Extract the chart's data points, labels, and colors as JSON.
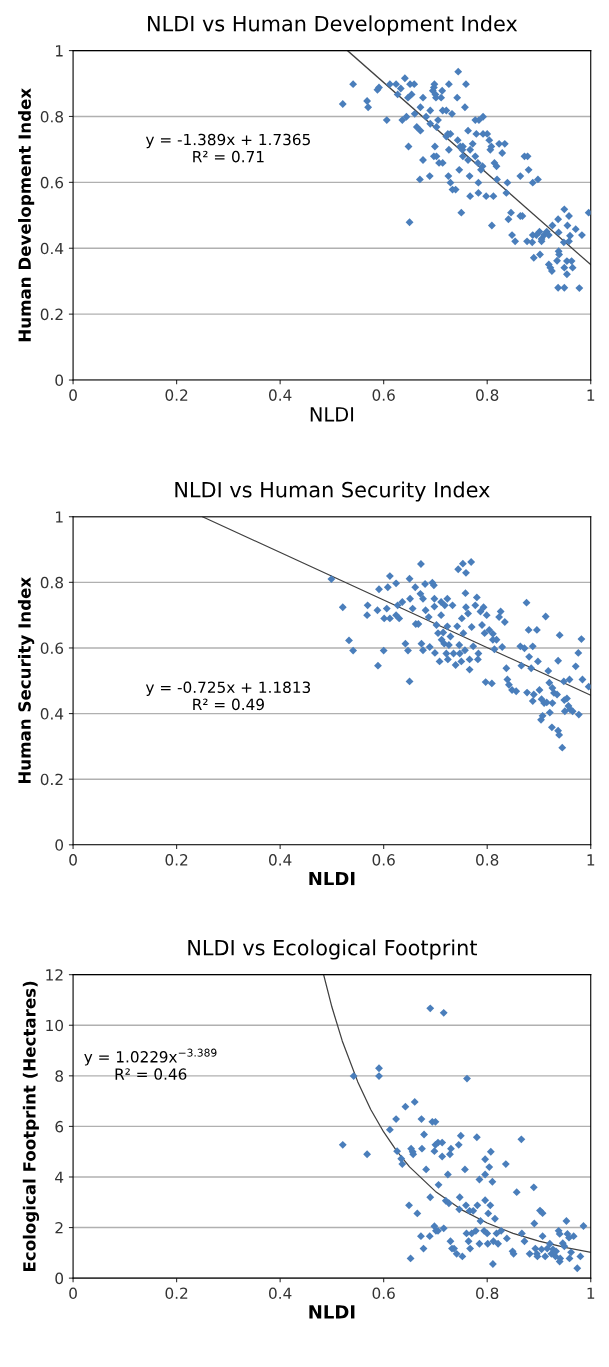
{
  "chart_data": [
    {
      "type": "scatter",
      "title": "NLDI vs Human Development Index",
      "xlabel": "NLDI",
      "ylabel": "Human Development Index",
      "xlim": [
        0,
        1
      ],
      "ylim": [
        0,
        1
      ],
      "xticks": [
        0,
        0.2,
        0.4,
        0.6,
        0.8,
        1
      ],
      "yticks": [
        0,
        0.2,
        0.4,
        0.6,
        0.8,
        1
      ],
      "grid": "y",
      "marker": "diamond",
      "annotations": [
        "y = -1.389x + 1.7365\nR² = 0.71"
      ],
      "series": [
        {
          "color": "#4a7ebb",
          "x": [
            0.521,
            0.541,
            0.568,
            0.57,
            0.588,
            0.591,
            0.606,
            0.612,
            0.624,
            0.627,
            0.633,
            0.641,
            0.636,
            0.644,
            0.648,
            0.65,
            0.651,
            0.659,
            0.647,
            0.654,
            0.66,
            0.664,
            0.671,
            0.671,
            0.676,
            0.676,
            0.67,
            0.682,
            0.689,
            0.69,
            0.69,
            0.695,
            0.697,
            0.698,
            0.7,
            0.701,
            0.699,
            0.697,
            0.702,
            0.705,
            0.702,
            0.707,
            0.713,
            0.714,
            0.711,
            0.714,
            0.721,
            0.726,
            0.732,
            0.721,
            0.724,
            0.729,
            0.726,
            0.725,
            0.729,
            0.733,
            0.739,
            0.744,
            0.742,
            0.743,
            0.746,
            0.748,
            0.75,
            0.753,
            0.752,
            0.757,
            0.759,
            0.753,
            0.763,
            0.763,
            0.767,
            0.766,
            0.767,
            0.772,
            0.777,
            0.777,
            0.779,
            0.783,
            0.783,
            0.784,
            0.782,
            0.792,
            0.792,
            0.788,
            0.791,
            0.798,
            0.8,
            0.804,
            0.806,
            0.808,
            0.812,
            0.809,
            0.814,
            0.818,
            0.819,
            0.823,
            0.829,
            0.834,
            0.839,
            0.837,
            0.841,
            0.846,
            0.848,
            0.854,
            0.864,
            0.868,
            0.864,
            0.872,
            0.878,
            0.88,
            0.877,
            0.888,
            0.898,
            0.888,
            0.89,
            0.887,
            0.895,
            0.901,
            0.902,
            0.905,
            0.905,
            0.91,
            0.915,
            0.919,
            0.919,
            0.922,
            0.925,
            0.926,
            0.935,
            0.938,
            0.939,
            0.937,
            0.938,
            0.937,
            0.949,
            0.949,
            0.948,
            0.949,
            0.954,
            0.958,
            0.958,
            0.954,
            0.96,
            0.963,
            0.965,
            0.971,
            0.978,
            0.983,
            0.996,
            0.955
          ],
          "values": [
            0.838,
            0.898,
            0.847,
            0.828,
            0.881,
            0.888,
            0.789,
            0.898,
            0.898,
            0.867,
            0.885,
            0.916,
            0.789,
            0.799,
            0.709,
            0.479,
            0.898,
            0.898,
            0.857,
            0.867,
            0.808,
            0.768,
            0.757,
            0.828,
            0.857,
            0.668,
            0.609,
            0.799,
            0.619,
            0.818,
            0.778,
            0.878,
            0.888,
            0.898,
            0.867,
            0.857,
            0.709,
            0.679,
            0.679,
            0.789,
            0.768,
            0.659,
            0.878,
            0.659,
            0.857,
            0.818,
            0.818,
            0.898,
            0.808,
            0.739,
            0.747,
            0.747,
            0.699,
            0.619,
            0.599,
            0.578,
            0.578,
            0.936,
            0.857,
            0.728,
            0.638,
            0.709,
            0.508,
            0.709,
            0.699,
            0.828,
            0.898,
            0.679,
            0.757,
            0.668,
            0.699,
            0.619,
            0.558,
            0.717,
            0.679,
            0.789,
            0.747,
            0.599,
            0.568,
            0.789,
            0.659,
            0.799,
            0.747,
            0.638,
            0.649,
            0.558,
            0.747,
            0.728,
            0.699,
            0.709,
            0.558,
            0.469,
            0.659,
            0.649,
            0.609,
            0.717,
            0.689,
            0.717,
            0.599,
            0.568,
            0.488,
            0.508,
            0.44,
            0.421,
            0.498,
            0.498,
            0.619,
            0.679,
            0.679,
            0.638,
            0.421,
            0.599,
            0.609,
            0.44,
            0.371,
            0.418,
            0.44,
            0.45,
            0.381,
            0.428,
            0.421,
            0.44,
            0.45,
            0.44,
            0.351,
            0.341,
            0.331,
            0.469,
            0.362,
            0.391,
            0.381,
            0.488,
            0.448,
            0.28,
            0.518,
            0.28,
            0.418,
            0.341,
            0.321,
            0.498,
            0.421,
            0.361,
            0.438,
            0.361,
            0.341,
            0.458,
            0.279,
            0.44,
            0.508,
            0.469
          ]
        },
        {
          "type": "line",
          "color": "#404040",
          "marker": "none",
          "x": [
            0.53,
            1
          ],
          "values": [
            1.0,
            0.35
          ]
        }
      ]
    },
    {
      "type": "scatter",
      "title": "NLDI vs Human Security Index",
      "xlabel": "NLDI",
      "ylabel": "Human Security Index",
      "xlim": [
        0,
        1
      ],
      "ylim": [
        0,
        1
      ],
      "xticks": [
        0,
        0.2,
        0.4,
        0.6,
        0.8,
        1
      ],
      "yticks": [
        0,
        0.2,
        0.4,
        0.6,
        0.8,
        1
      ],
      "grid": "y",
      "marker": "diamond",
      "annotations": [
        "y = -0.725x + 1.1813\nR² = 0.49"
      ],
      "series": [
        {
          "color": "#4a7ebb",
          "x": [
            0.499,
            0.521,
            0.533,
            0.541,
            0.568,
            0.569,
            0.588,
            0.589,
            0.591,
            0.601,
            0.6,
            0.606,
            0.608,
            0.612,
            0.612,
            0.624,
            0.624,
            0.627,
            0.63,
            0.636,
            0.642,
            0.647,
            0.65,
            0.65,
            0.651,
            0.656,
            0.661,
            0.662,
            0.667,
            0.672,
            0.671,
            0.673,
            0.676,
            0.68,
            0.676,
            0.681,
            0.687,
            0.689,
            0.694,
            0.697,
            0.698,
            0.698,
            0.699,
            0.702,
            0.705,
            0.708,
            0.711,
            0.711,
            0.712,
            0.715,
            0.717,
            0.718,
            0.723,
            0.721,
            0.723,
            0.724,
            0.726,
            0.729,
            0.733,
            0.735,
            0.739,
            0.742,
            0.744,
            0.746,
            0.747,
            0.75,
            0.751,
            0.753,
            0.754,
            0.757,
            0.758,
            0.759,
            0.759,
            0.763,
            0.766,
            0.766,
            0.769,
            0.77,
            0.773,
            0.777,
            0.78,
            0.782,
            0.783,
            0.787,
            0.79,
            0.793,
            0.795,
            0.797,
            0.799,
            0.804,
            0.809,
            0.811,
            0.811,
            0.814,
            0.818,
            0.823,
            0.826,
            0.829,
            0.834,
            0.837,
            0.839,
            0.842,
            0.848,
            0.856,
            0.864,
            0.866,
            0.872,
            0.876,
            0.877,
            0.88,
            0.881,
            0.885,
            0.888,
            0.89,
            0.888,
            0.896,
            0.898,
            0.901,
            0.904,
            0.905,
            0.907,
            0.91,
            0.913,
            0.915,
            0.918,
            0.92,
            0.921,
            0.926,
            0.926,
            0.925,
            0.929,
            0.935,
            0.937,
            0.937,
            0.939,
            0.94,
            0.945,
            0.948,
            0.949,
            0.95,
            0.954,
            0.957,
            0.959,
            0.96,
            0.965,
            0.971,
            0.976,
            0.977,
            0.982,
            0.984,
            0.996
          ],
          "values": [
            0.81,
            0.724,
            0.623,
            0.592,
            0.7,
            0.73,
            0.715,
            0.546,
            0.779,
            0.69,
            0.592,
            0.72,
            0.785,
            0.819,
            0.69,
            0.797,
            0.7,
            0.73,
            0.69,
            0.74,
            0.613,
            0.592,
            0.498,
            0.811,
            0.75,
            0.72,
            0.785,
            0.673,
            0.673,
            0.856,
            0.765,
            0.613,
            0.593,
            0.795,
            0.75,
            0.715,
            0.694,
            0.603,
            0.799,
            0.791,
            0.75,
            0.726,
            0.585,
            0.67,
            0.645,
            0.559,
            0.74,
            0.7,
            0.625,
            0.647,
            0.613,
            0.73,
            0.666,
            0.583,
            0.75,
            0.565,
            0.609,
            0.635,
            0.73,
            0.583,
            0.548,
            0.666,
            0.84,
            0.609,
            0.583,
            0.559,
            0.69,
            0.857,
            0.645,
            0.593,
            0.767,
            0.829,
            0.724,
            0.705,
            0.534,
            0.565,
            0.862,
            0.664,
            0.605,
            0.73,
            0.754,
            0.565,
            0.583,
            0.711,
            0.67,
            0.724,
            0.645,
            0.496,
            0.7,
            0.655,
            0.492,
            0.643,
            0.625,
            0.596,
            0.625,
            0.694,
            0.711,
            0.603,
            0.679,
            0.538,
            0.504,
            0.488,
            0.472,
            0.468,
            0.605,
            0.546,
            0.599,
            0.738,
            0.464,
            0.655,
            0.573,
            0.538,
            0.605,
            0.458,
            0.438,
            0.655,
            0.559,
            0.472,
            0.381,
            0.444,
            0.393,
            0.432,
            0.696,
            0.434,
            0.53,
            0.494,
            0.403,
            0.478,
            0.432,
            0.358,
            0.463,
            0.458,
            0.561,
            0.348,
            0.335,
            0.639,
            0.296,
            0.498,
            0.441,
            0.407,
            0.446,
            0.423,
            0.504,
            0.413,
            0.407,
            0.544,
            0.585,
            0.397,
            0.627,
            0.504,
            0.482
          ]
        },
        {
          "type": "line",
          "color": "#404040",
          "marker": "none",
          "x": [
            0.25,
            1
          ],
          "values": [
            1.0,
            0.456
          ]
        }
      ]
    },
    {
      "type": "scatter",
      "title": "NLDI vs Ecological Footprint",
      "xlabel": "NLDI",
      "ylabel": "Ecological Footprint (Hectares)",
      "xlim": [
        0,
        1
      ],
      "ylim": [
        0,
        12
      ],
      "xticks": [
        0,
        0.2,
        0.4,
        0.6,
        0.8,
        1
      ],
      "yticks": [
        0,
        2,
        4,
        6,
        8,
        10,
        12
      ],
      "grid": "y",
      "marker": "diamond",
      "annotations": [
        "y = 1.0229x$^{−3.389}$\nR² = 0.46"
      ],
      "series": [
        {
          "color": "#4a7ebb",
          "x": [
            0.521,
            0.542,
            0.568,
            0.591,
            0.591,
            0.612,
            0.624,
            0.626,
            0.634,
            0.636,
            0.642,
            0.649,
            0.652,
            0.653,
            0.656,
            0.657,
            0.66,
            0.665,
            0.672,
            0.673,
            0.674,
            0.677,
            0.678,
            0.682,
            0.689,
            0.69,
            0.69,
            0.694,
            0.698,
            0.7,
            0.698,
            0.7,
            0.701,
            0.705,
            0.706,
            0.705,
            0.713,
            0.713,
            0.716,
            0.716,
            0.72,
            0.724,
            0.726,
            0.728,
            0.729,
            0.73,
            0.732,
            0.736,
            0.741,
            0.745,
            0.746,
            0.747,
            0.749,
            0.752,
            0.757,
            0.759,
            0.761,
            0.76,
            0.764,
            0.766,
            0.767,
            0.77,
            0.773,
            0.778,
            0.78,
            0.781,
            0.785,
            0.785,
            0.787,
            0.794,
            0.796,
            0.796,
            0.796,
            0.8,
            0.801,
            0.802,
            0.804,
            0.806,
            0.807,
            0.81,
            0.811,
            0.812,
            0.815,
            0.818,
            0.821,
            0.827,
            0.836,
            0.838,
            0.849,
            0.851,
            0.857,
            0.866,
            0.867,
            0.872,
            0.882,
            0.89,
            0.891,
            0.893,
            0.896,
            0.897,
            0.902,
            0.905,
            0.907,
            0.907,
            0.912,
            0.916,
            0.921,
            0.924,
            0.927,
            0.932,
            0.933,
            0.938,
            0.94,
            0.94,
            0.941,
            0.946,
            0.949,
            0.953,
            0.955,
            0.958,
            0.959,
            0.962,
            0.967,
            0.974,
            0.98,
            0.986
          ],
          "values": [
            5.27,
            7.99,
            4.9,
            8.3,
            7.99,
            5.87,
            6.29,
            5.02,
            4.72,
            4.51,
            6.78,
            2.88,
            0.78,
            5.12,
            5.0,
            4.9,
            6.97,
            2.56,
            1.66,
            6.29,
            5.12,
            1.17,
            5.68,
            4.3,
            1.66,
            3.2,
            10.67,
            6.18,
            2.05,
            6.18,
            5.02,
            5.27,
            1.87,
            5.36,
            3.69,
            1.87,
            5.36,
            4.81,
            1.97,
            10.49,
            3.06,
            4.1,
            2.96,
            4.9,
            1.46,
            5.12,
            1.17,
            1.17,
            0.96,
            5.27,
            2.72,
            3.2,
            5.63,
            0.86,
            4.3,
            2.88,
            7.89,
            1.77,
            1.46,
            2.66,
            1.17,
            1.77,
            2.66,
            1.87,
            5.57,
            2.88,
            3.9,
            1.36,
            2.26,
            1.87,
            3.08,
            4.7,
            4.1,
            1.77,
            1.36,
            2.56,
            4.39,
            2.88,
            5.0,
            3.81,
            0.56,
            1.46,
            2.35,
            1.77,
            1.36,
            1.87,
            4.51,
            1.57,
            1.06,
            0.96,
            3.4,
            5.49,
            1.77,
            1.46,
            0.96,
            3.59,
            2.16,
            1.17,
            0.96,
            0.86,
            2.67,
            1.14,
            2.57,
            1.66,
            0.86,
            1.17,
            1.36,
            0.96,
            1.14,
            0.86,
            1.06,
            1.87,
            1.75,
            0.66,
            0.78,
            1.38,
            1.26,
            2.26,
            1.75,
            1.6,
            0.78,
            1.02,
            1.66,
            0.39,
            0.86,
            2.06
          ]
        },
        {
          "type": "line",
          "color": "#404040",
          "marker": "none",
          "x": [
            0.484,
            0.5,
            0.52,
            0.55,
            0.575,
            0.6,
            0.625,
            0.65,
            0.7,
            0.75,
            0.8,
            0.85,
            0.9,
            0.95,
            1.0
          ],
          "values": [
            12.0,
            10.72,
            9.38,
            7.76,
            6.67,
            5.78,
            5.03,
            4.4,
            3.43,
            2.71,
            2.18,
            1.77,
            1.46,
            1.22,
            1.02
          ]
        }
      ]
    }
  ]
}
